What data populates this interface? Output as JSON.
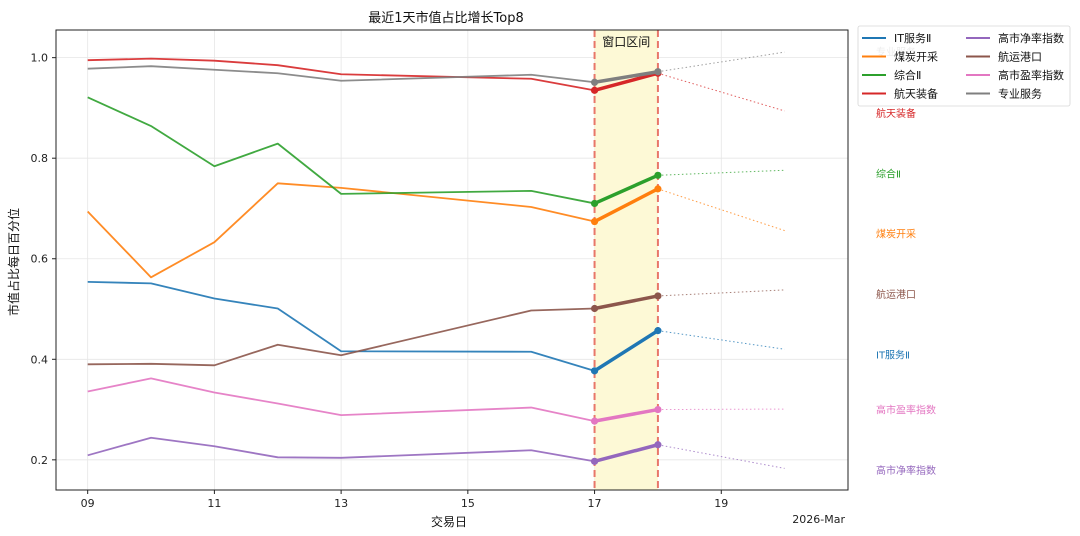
{
  "chart_data": {
    "type": "line",
    "title": "最近1天市值占比增长Top8",
    "xlabel": "交易日",
    "ylabel": "市值占比每日百分位",
    "x_offset_label": "2026-Mar",
    "xlim": [
      8.5,
      21.0
    ],
    "ylim": [
      0.14,
      1.055
    ],
    "x_ticks": [
      9,
      11,
      13,
      15,
      17,
      19
    ],
    "x_tick_labels": [
      "09",
      "11",
      "13",
      "15",
      "17",
      "19"
    ],
    "y_ticks": [
      0.2,
      0.4,
      0.6,
      0.8,
      1.0
    ],
    "y_tick_labels": [
      "0.2",
      "0.4",
      "0.6",
      "0.8",
      "1.0"
    ],
    "grid": true,
    "legend_placement": "outside-top-right",
    "window": {
      "label": "窗口区间",
      "start": 17,
      "end": 18,
      "fill_color": "#fdf9d6",
      "line_color": "#e8776a"
    },
    "x": [
      9,
      10,
      11,
      12,
      13,
      16,
      17,
      18
    ],
    "series": [
      {
        "name": "IT服务Ⅱ",
        "color": "#1f77b4",
        "values": [
          0.554,
          0.551,
          0.521,
          0.501,
          0.416,
          0.415,
          0.377,
          0.457
        ],
        "projection": [
          18,
          0.457,
          20,
          0.42
        ],
        "end_label_y": 0.41
      },
      {
        "name": "煤炭开采",
        "color": "#ff7f0e",
        "values": [
          0.694,
          0.563,
          0.633,
          0.75,
          0.741,
          0.703,
          0.674,
          0.739
        ],
        "projection": [
          18,
          0.739,
          20,
          0.656
        ],
        "end_label_y": 0.65
      },
      {
        "name": "综合Ⅱ",
        "color": "#2ca02c",
        "values": [
          0.921,
          0.864,
          0.784,
          0.829,
          0.729,
          0.735,
          0.71,
          0.766
        ],
        "projection": [
          18,
          0.766,
          20,
          0.776
        ],
        "end_label_y": 0.77
      },
      {
        "name": "航天装备",
        "color": "#d62728",
        "values": [
          0.995,
          0.998,
          0.994,
          0.985,
          0.967,
          0.958,
          0.935,
          0.969
        ],
        "projection": [
          18,
          0.969,
          20,
          0.894
        ],
        "end_label_y": 0.89
      },
      {
        "name": "高市净率指数",
        "color": "#9467bd",
        "values": [
          0.209,
          0.244,
          0.227,
          0.205,
          0.204,
          0.219,
          0.197,
          0.23
        ],
        "projection": [
          18,
          0.23,
          20,
          0.183
        ],
        "end_label_y": 0.18
      },
      {
        "name": "航运港口",
        "color": "#8c564b",
        "values": [
          0.39,
          0.391,
          0.388,
          0.429,
          0.408,
          0.497,
          0.501,
          0.526
        ],
        "projection": [
          18,
          0.526,
          20,
          0.538
        ],
        "end_label_y": 0.53
      },
      {
        "name": "高市盈率指数",
        "color": "#e377c2",
        "values": [
          0.336,
          0.362,
          0.334,
          0.312,
          0.289,
          0.304,
          0.277,
          0.3
        ],
        "projection": [
          18,
          0.3,
          20,
          0.301
        ],
        "end_label_y": 0.3
      },
      {
        "name": "专业服务",
        "color": "#7f7f7f",
        "values": [
          0.978,
          0.983,
          0.976,
          0.969,
          0.954,
          0.966,
          0.951,
          0.972
        ],
        "projection": [
          18,
          0.972,
          20,
          1.011
        ],
        "end_label_y": 1.012
      }
    ]
  }
}
